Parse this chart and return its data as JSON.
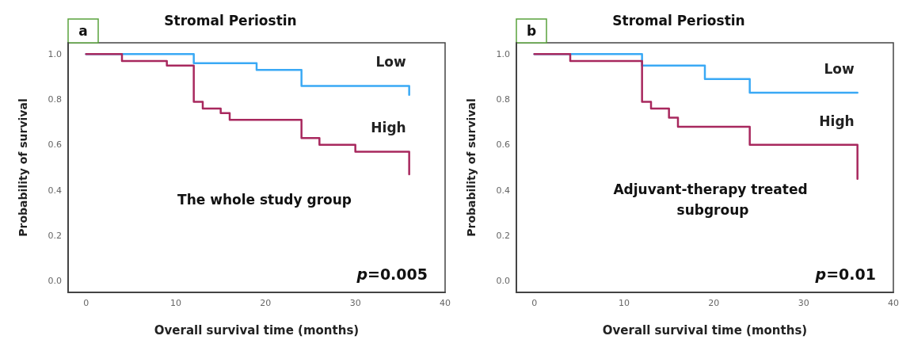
{
  "chart_data": [
    {
      "type": "step",
      "title": "Stromal Periostin",
      "xlabel": "Overall survival time (months)",
      "ylabel": "Probability of survival",
      "annotations": [
        "a",
        "The whole study group",
        "p=0.005"
      ],
      "series": [
        {
          "name": "Low",
          "color": "#3aa9f5",
          "x": [
            0,
            12,
            19,
            24,
            36
          ],
          "values": [
            1.0,
            0.96,
            0.93,
            0.86,
            0.82
          ]
        },
        {
          "name": "High",
          "color": "#a8285e",
          "x": [
            0,
            4,
            9,
            12,
            13,
            15,
            16,
            24,
            26,
            30,
            36
          ],
          "values": [
            1.0,
            0.97,
            0.95,
            0.79,
            0.76,
            0.74,
            0.71,
            0.63,
            0.6,
            0.57,
            0.47
          ]
        }
      ],
      "xlim": [
        -2,
        40
      ],
      "xticks": [
        0,
        10,
        20,
        30,
        40
      ],
      "ylim": [
        -0.05,
        1.05
      ],
      "yticks": [
        {
          "value": 0,
          "label": "0.0"
        },
        {
          "value": 0.2,
          "label": "0.2"
        },
        {
          "value": 0.4,
          "label": "0.4"
        },
        {
          "value": 0.6,
          "label": "0.6"
        },
        {
          "value": 0.8,
          "label": "0.8"
        },
        {
          "value": 1,
          "label": "1.0"
        }
      ],
      "grid": false,
      "legend": false,
      "marker": "none",
      "line_style": "solid"
    },
    {
      "type": "step",
      "title": "Stromal Periostin",
      "xlabel": "Overall survival time (months)",
      "ylabel": "Probability of survival",
      "annotations": [
        "b",
        "Adjuvant-therapy treated subgroup",
        "p=0.01"
      ],
      "series": [
        {
          "name": "Low",
          "color": "#3aa9f5",
          "x": [
            0,
            12,
            19,
            24,
            36
          ],
          "values": [
            1.0,
            0.95,
            0.89,
            0.83,
            0.83
          ]
        },
        {
          "name": "High",
          "color": "#a8285e",
          "x": [
            0,
            4,
            12,
            13,
            15,
            16,
            24,
            36
          ],
          "values": [
            1.0,
            0.97,
            0.79,
            0.76,
            0.72,
            0.68,
            0.6,
            0.45
          ]
        }
      ],
      "xlim": [
        -2,
        40
      ],
      "xticks": [
        0,
        10,
        20,
        30,
        40
      ],
      "ylim": [
        -0.05,
        1.05
      ],
      "yticks": [
        {
          "value": 0,
          "label": "0.0"
        },
        {
          "value": 0.2,
          "label": "0.2"
        },
        {
          "value": 0.4,
          "label": "0.4"
        },
        {
          "value": 0.6,
          "label": "0.6"
        },
        {
          "value": 0.8,
          "label": "0.8"
        },
        {
          "value": 1,
          "label": "1.0"
        }
      ],
      "grid": false,
      "legend": false,
      "marker": "none",
      "line_style": "solid"
    }
  ]
}
